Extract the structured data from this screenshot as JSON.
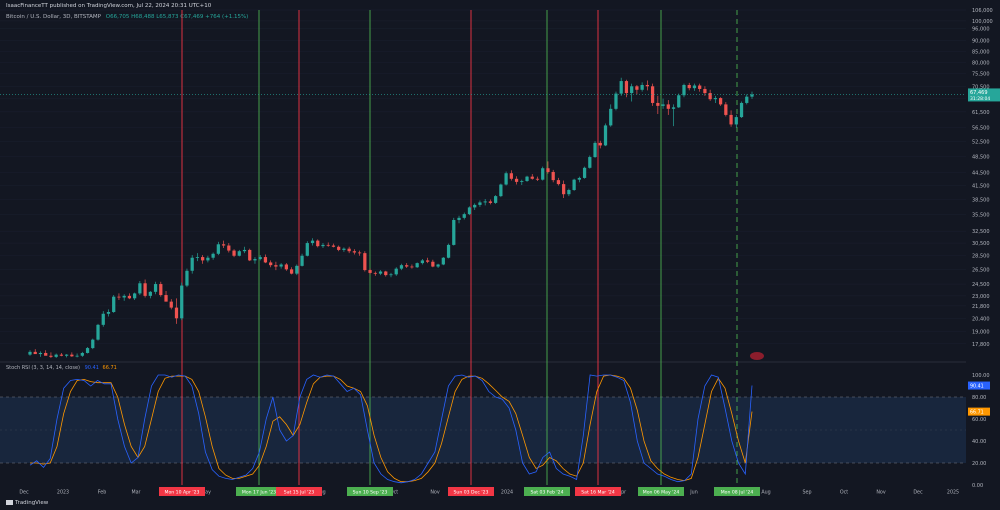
{
  "header": {
    "publisher": "IsaacFinanceTT published on TradingView.com, Jul 22, 2024 20:31 UTC+10",
    "symbol": "Bitcoin / U.S. Dollar, 3D, BITSTAMP",
    "ohlc": "O66,705  H68,488  L65,873  C67,469  +764 (+1.15%)"
  },
  "footer": {
    "logo_text": "TradingView"
  },
  "colors": {
    "background": "#131722",
    "up": "#26a69a",
    "down": "#ef5350",
    "red_line": "#f23645",
    "green_line": "#4caf50",
    "k_line": "#2962ff",
    "d_line": "#ff9800",
    "band": "#1e3a5f"
  },
  "chart_data": [
    {
      "type": "candlestick",
      "price_scale": "log",
      "ylim": [
        16500,
        106000
      ],
      "y_ticks": [
        "106,000",
        "100,000",
        "96,000",
        "90,000",
        "85,000",
        "80,000",
        "75,500",
        "70,500",
        "66,000",
        "61,500",
        "56,500",
        "52,500",
        "48,500",
        "44,500",
        "41,500",
        "38,500",
        "35,500",
        "32,500",
        "30,500",
        "28,500",
        "26,500",
        "24,500",
        "23,000",
        "21,800",
        "20,400",
        "19,000",
        "17,800"
      ],
      "x_ticks": [
        "Dec",
        "2023",
        "Feb",
        "Mar",
        "May",
        "Aug",
        "Oct",
        "Nov",
        "2024",
        "Apr",
        "Jun",
        "Aug",
        "Sep",
        "Oct",
        "Nov",
        "Dec",
        "2025"
      ],
      "last_price_label": "67,469",
      "countdown_label": "31:28:04",
      "bubble_label": "",
      "candles": [
        [
          16800,
          17200,
          16700,
          17050
        ],
        [
          17050,
          17300,
          16900,
          16850
        ],
        [
          16850,
          17100,
          16600,
          16950
        ],
        [
          16950,
          17200,
          16800,
          16700
        ],
        [
          16700,
          17000,
          16500,
          16600
        ],
        [
          16600,
          16900,
          16500,
          16800
        ],
        [
          16800,
          16950,
          16650,
          16700
        ],
        [
          16700,
          16850,
          16550,
          16800
        ],
        [
          16800,
          17000,
          16600,
          16650
        ],
        [
          16650,
          16900,
          16550,
          16700
        ],
        [
          16700,
          17050,
          16600,
          16950
        ],
        [
          16950,
          17500,
          16900,
          17400
        ],
        [
          17400,
          18300,
          17300,
          18200
        ],
        [
          18200,
          19800,
          18100,
          19700
        ],
        [
          19700,
          21200,
          19500,
          20900
        ],
        [
          20900,
          21400,
          20600,
          21100
        ],
        [
          21100,
          23100,
          21000,
          22900
        ],
        [
          22900,
          23300,
          22500,
          22800
        ],
        [
          22800,
          23200,
          22400,
          23000
        ],
        [
          23000,
          23300,
          22600,
          22700
        ],
        [
          22700,
          23400,
          22500,
          23300
        ],
        [
          23300,
          24900,
          23100,
          24600
        ],
        [
          24600,
          25100,
          22800,
          23000
        ],
        [
          23000,
          23600,
          22700,
          23500
        ],
        [
          23500,
          24800,
          23200,
          24500
        ],
        [
          24500,
          24800,
          22900,
          23100
        ],
        [
          23100,
          23600,
          22600,
          22300
        ],
        [
          22300,
          22600,
          21400,
          21600
        ],
        [
          21600,
          22700,
          19800,
          20400
        ],
        [
          20400,
          24700,
          20200,
          24300
        ],
        [
          24300,
          26600,
          24100,
          26300
        ],
        [
          26300,
          28600,
          25900,
          28200
        ],
        [
          28200,
          28900,
          27700,
          28300
        ],
        [
          28300,
          28600,
          27300,
          27800
        ],
        [
          27800,
          28500,
          27500,
          28200
        ],
        [
          28200,
          29000,
          27900,
          28800
        ],
        [
          28800,
          30700,
          28600,
          30300
        ],
        [
          30300,
          30900,
          29700,
          30100
        ],
        [
          30100,
          30500,
          29000,
          29300
        ],
        [
          29300,
          29500,
          28300,
          28500
        ],
        [
          28500,
          29400,
          28400,
          29200
        ],
        [
          29200,
          29900,
          28900,
          29400
        ],
        [
          29400,
          29600,
          27700,
          27800
        ],
        [
          27800,
          28300,
          27300,
          28000
        ],
        [
          28000,
          28600,
          27800,
          28300
        ],
        [
          28300,
          28700,
          27400,
          27500
        ],
        [
          27500,
          27800,
          26800,
          27100
        ],
        [
          27100,
          27600,
          26400,
          26900
        ],
        [
          26900,
          27400,
          26600,
          27200
        ],
        [
          27200,
          27400,
          26300,
          26500
        ],
        [
          26500,
          26800,
          25800,
          25900
        ],
        [
          25900,
          27200,
          25700,
          27000
        ],
        [
          27000,
          28800,
          26900,
          28500
        ],
        [
          28500,
          30800,
          28400,
          30500
        ],
        [
          30500,
          31300,
          30100,
          30900
        ],
        [
          30900,
          31100,
          29800,
          30000
        ],
        [
          30000,
          30500,
          29700,
          30200
        ],
        [
          30200,
          30600,
          29900,
          30100
        ],
        [
          30100,
          30400,
          29800,
          29900
        ],
        [
          29900,
          30100,
          29200,
          29400
        ],
        [
          29400,
          29800,
          29100,
          29600
        ],
        [
          29600,
          29900,
          28900,
          29200
        ],
        [
          29200,
          29500,
          28700,
          29000
        ],
        [
          29000,
          29300,
          28500,
          28900
        ],
        [
          28900,
          29200,
          26200,
          26400
        ],
        [
          26400,
          26600,
          25800,
          26000
        ],
        [
          26000,
          26200,
          25600,
          25900
        ],
        [
          25900,
          26400,
          25700,
          26200
        ],
        [
          26200,
          26300,
          25500,
          25700
        ],
        [
          25700,
          26000,
          25400,
          25800
        ],
        [
          25800,
          26800,
          25600,
          26600
        ],
        [
          26600,
          27300,
          26400,
          27100
        ],
        [
          27100,
          27400,
          26700,
          26900
        ],
        [
          26900,
          27200,
          26600,
          26800
        ],
        [
          26800,
          27500,
          26700,
          27400
        ],
        [
          27400,
          28000,
          27200,
          27800
        ],
        [
          27800,
          28200,
          27400,
          27600
        ],
        [
          27600,
          27900,
          26800,
          26900
        ],
        [
          26900,
          27300,
          26700,
          27200
        ],
        [
          27200,
          28300,
          27100,
          28200
        ],
        [
          28200,
          30400,
          28100,
          30200
        ],
        [
          30200,
          34900,
          30100,
          34500
        ],
        [
          34500,
          35300,
          33900,
          34900
        ],
        [
          34900,
          35900,
          34600,
          35600
        ],
        [
          35600,
          37100,
          35400,
          36900
        ],
        [
          36900,
          37700,
          36400,
          37400
        ],
        [
          37400,
          38300,
          37000,
          37900
        ],
        [
          37900,
          38600,
          37300,
          38100
        ],
        [
          38100,
          38500,
          37500,
          37800
        ],
        [
          37800,
          39400,
          37600,
          39200
        ],
        [
          39200,
          41900,
          39000,
          41700
        ],
        [
          41700,
          44700,
          41500,
          44300
        ],
        [
          44300,
          45000,
          42600,
          43000
        ],
        [
          43000,
          43600,
          41700,
          42300
        ],
        [
          42300,
          42800,
          41600,
          42500
        ],
        [
          42500,
          43700,
          42300,
          43500
        ],
        [
          43500,
          44100,
          42800,
          43000
        ],
        [
          43000,
          43500,
          42500,
          42800
        ],
        [
          42800,
          45900,
          42600,
          45500
        ],
        [
          45500,
          47200,
          44200,
          44600
        ],
        [
          44600,
          45100,
          42200,
          42700
        ],
        [
          42700,
          43200,
          41500,
          41800
        ],
        [
          41800,
          42600,
          38800,
          39600
        ],
        [
          39600,
          40800,
          39200,
          40500
        ],
        [
          40500,
          43000,
          40300,
          42800
        ],
        [
          42800,
          43500,
          42200,
          43200
        ],
        [
          43200,
          45900,
          43000,
          45600
        ],
        [
          45600,
          48700,
          45400,
          48300
        ],
        [
          48300,
          52600,
          48100,
          52100
        ],
        [
          52100,
          52700,
          50600,
          51400
        ],
        [
          51400,
          57800,
          51200,
          57200
        ],
        [
          57200,
          64000,
          56800,
          62500
        ],
        [
          62500,
          68500,
          62000,
          67800
        ],
        [
          67800,
          73800,
          67000,
          72500
        ],
        [
          72500,
          73000,
          66500,
          68000
        ],
        [
          68000,
          71500,
          65000,
          70500
        ],
        [
          70500,
          71000,
          67500,
          69200
        ],
        [
          69200,
          72000,
          68500,
          71000
        ],
        [
          71000,
          72700,
          69000,
          70500
        ],
        [
          70500,
          71500,
          63500,
          64500
        ],
        [
          64500,
          67000,
          60800,
          63500
        ],
        [
          63500,
          66000,
          62500,
          64000
        ],
        [
          64000,
          65500,
          60500,
          62500
        ],
        [
          62500,
          64000,
          57000,
          63000
        ],
        [
          63000,
          67800,
          62800,
          67200
        ],
        [
          67200,
          71500,
          66500,
          71000
        ],
        [
          71000,
          71800,
          69000,
          69800
        ],
        [
          69800,
          71500,
          68800,
          70800
        ],
        [
          70800,
          71500,
          68500,
          69500
        ],
        [
          69500,
          70500,
          67000,
          68000
        ],
        [
          68000,
          69200,
          65200,
          65800
        ],
        [
          65800,
          67000,
          64500,
          66200
        ],
        [
          66200,
          66500,
          63500,
          64000
        ],
        [
          64000,
          64800,
          60000,
          60500
        ],
        [
          60500,
          62000,
          56800,
          57500
        ],
        [
          57500,
          60500,
          56500,
          59800
        ],
        [
          59800,
          65000,
          59500,
          64500
        ],
        [
          64500,
          67500,
          64000,
          66700
        ],
        [
          66700,
          68500,
          65900,
          67500
        ]
      ],
      "vertical_markers": [
        {
          "label": "Mon 10 Apr '23",
          "color": "red"
        },
        {
          "label": "Mon 17 Jun '23",
          "color": "green"
        },
        {
          "label": "Sat 15 Jul '23",
          "color": "red"
        },
        {
          "label": "Sun 10 Sep '23",
          "color": "green"
        },
        {
          "label": "Sun 03 Dec '23",
          "color": "red"
        },
        {
          "label": "Sat 03 Feb '24",
          "color": "green"
        },
        {
          "label": "Sat 16 Mar '24",
          "color": "red"
        },
        {
          "label": "Mon 06 May '24",
          "color": "green"
        },
        {
          "label": "Mon 08 Jul '24",
          "color": "green",
          "dashed": true
        }
      ]
    },
    {
      "type": "line",
      "title": "Stoch RSI (3, 3, 14, 14, close)",
      "k_label": "90.41",
      "d_label": "66.71",
      "ylim": [
        0,
        100
      ],
      "band": [
        20,
        80
      ],
      "y_ticks": [
        "100.00",
        "80.00",
        "60.00",
        "40.00",
        "20.00",
        "0.00"
      ],
      "series": [
        {
          "name": "K",
          "values": [
            18,
            22,
            16,
            24,
            60,
            88,
            95,
            96,
            95,
            90,
            95,
            92,
            92,
            60,
            35,
            20,
            25,
            60,
            90,
            100,
            100,
            98,
            100,
            99,
            90,
            65,
            30,
            14,
            8,
            6,
            5,
            7,
            9,
            15,
            30,
            60,
            80,
            50,
            40,
            45,
            80,
            96,
            100,
            98,
            100,
            99,
            92,
            85,
            88,
            82,
            50,
            20,
            10,
            5,
            3,
            2,
            3,
            5,
            10,
            20,
            30,
            60,
            90,
            99,
            100,
            98,
            99,
            95,
            85,
            80,
            78,
            70,
            50,
            20,
            10,
            12,
            25,
            30,
            15,
            10,
            8,
            5,
            45,
            100,
            99,
            100,
            100,
            98,
            95,
            75,
            40,
            20,
            15,
            10,
            8,
            5,
            3,
            4,
            10,
            60,
            90,
            100,
            98,
            70,
            40,
            20,
            10,
            90.41
          ]
        },
        {
          "name": "D",
          "values": [
            20,
            20,
            19,
            20,
            35,
            65,
            85,
            95,
            96,
            94,
            93,
            93,
            93,
            80,
            55,
            35,
            25,
            35,
            60,
            85,
            97,
            99,
            99,
            99,
            96,
            85,
            62,
            35,
            15,
            9,
            6,
            6,
            8,
            10,
            18,
            35,
            58,
            62,
            55,
            45,
            55,
            75,
            92,
            98,
            99,
            99,
            96,
            90,
            88,
            85,
            72,
            45,
            25,
            12,
            6,
            3,
            3,
            4,
            6,
            12,
            20,
            38,
            62,
            85,
            96,
            99,
            99,
            97,
            92,
            86,
            80,
            76,
            65,
            45,
            25,
            15,
            18,
            25,
            22,
            15,
            10,
            8,
            20,
            55,
            85,
            99,
            100,
            99,
            97,
            88,
            68,
            40,
            22,
            15,
            10,
            7,
            5,
            4,
            6,
            25,
            55,
            85,
            97,
            88,
            65,
            40,
            20,
            66.71
          ]
        }
      ]
    }
  ]
}
